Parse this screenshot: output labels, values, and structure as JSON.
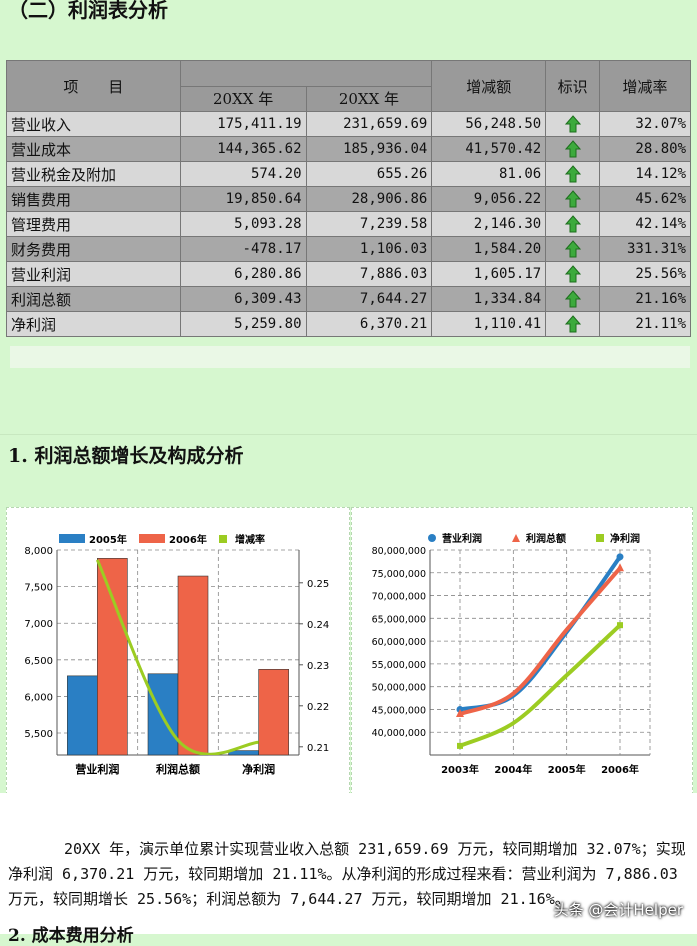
{
  "section_title": "（二）利润表分析",
  "table": {
    "header": {
      "item": "项　　目",
      "col1": "20XX 年",
      "col2": "20XX 年",
      "change": "增减额",
      "flag": "标识",
      "rate": "增减率"
    },
    "rows": [
      {
        "name": "营业收入",
        "v1": "175,411.19",
        "v2": "231,659.69",
        "change": "56,248.50",
        "rate": "32.07%",
        "flag": "up-arrow-icon"
      },
      {
        "name": "营业成本",
        "v1": "144,365.62",
        "v2": "185,936.04",
        "change": "41,570.42",
        "rate": "28.80%",
        "flag": "up-arrow-icon"
      },
      {
        "name": "营业税金及附加",
        "v1": "574.20",
        "v2": "655.26",
        "change": "81.06",
        "rate": "14.12%",
        "flag": "up-arrow-icon"
      },
      {
        "name": "销售费用",
        "v1": "19,850.64",
        "v2": "28,906.86",
        "change": "9,056.22",
        "rate": "45.62%",
        "flag": "up-arrow-icon"
      },
      {
        "name": "管理费用",
        "v1": "5,093.28",
        "v2": "7,239.58",
        "change": "2,146.30",
        "rate": "42.14%",
        "flag": "up-arrow-icon"
      },
      {
        "name": "财务费用",
        "v1": "-478.17",
        "v2": "1,106.03",
        "change": "1,584.20",
        "rate": "331.31%",
        "flag": "up-arrow-icon"
      },
      {
        "name": "营业利润",
        "v1": "6,280.86",
        "v2": "7,886.03",
        "change": "1,605.17",
        "rate": "25.56%",
        "flag": "up-arrow-icon"
      },
      {
        "name": "利润总额",
        "v1": "6,309.43",
        "v2": "7,644.27",
        "change": "1,334.84",
        "rate": "21.16%",
        "flag": "up-arrow-icon"
      },
      {
        "name": "净利润",
        "v1": "5,259.80",
        "v2": "6,370.21",
        "change": "1,110.41",
        "rate": "21.11%",
        "flag": "up-arrow-icon"
      }
    ]
  },
  "subsection_title": "1. 利润总额增长及构成分析",
  "chart_data": [
    {
      "type": "bar",
      "categories": [
        "营业利润",
        "利润总额",
        "净利润"
      ],
      "series": [
        {
          "name": "2005年",
          "values": [
            6280.86,
            6309.43,
            5259.8
          ],
          "color": "#2a7fc4"
        },
        {
          "name": "2006年",
          "values": [
            7886.03,
            7644.27,
            6370.21
          ],
          "color": "#ee6448"
        }
      ],
      "secondary_series": {
        "name": "增减率",
        "values": [
          0.2556,
          0.2116,
          0.2111
        ],
        "color": "#9ccc22"
      },
      "ylim": [
        5200,
        8000
      ],
      "yticks": [
        "8,000",
        "7,500",
        "7,000",
        "6,500",
        "6,000",
        "5,500"
      ],
      "y2lim": [
        0.208,
        0.258
      ],
      "y2ticks": [
        "0.25",
        "0.24",
        "0.23",
        "0.22",
        "0.21"
      ],
      "legend": "top",
      "grid": true
    },
    {
      "type": "line",
      "x": [
        "2003年",
        "2004年",
        "2005年",
        "2006年"
      ],
      "series": [
        {
          "name": "营业利润",
          "values": [
            45000000,
            48000000,
            62000000,
            78500000
          ],
          "color": "#2a7fc4",
          "marker": "circle"
        },
        {
          "name": "利润总额",
          "values": [
            44000000,
            48500000,
            62500000,
            76000000
          ],
          "color": "#ee6448",
          "marker": "triangle"
        },
        {
          "name": "净利润",
          "values": [
            37000000,
            42000000,
            52500000,
            63500000
          ],
          "color": "#9ccc22",
          "marker": "square"
        }
      ],
      "ylim": [
        35000000,
        80000000
      ],
      "yticks": [
        "80,000,000",
        "75,000,000",
        "70,000,000",
        "65,000,000",
        "60,000,000",
        "55,000,000",
        "50,000,000",
        "45,000,000",
        "40,000,000"
      ],
      "legend": "top",
      "grid": true
    }
  ],
  "paragraph": "20XX 年，演示单位累计实现营业收入总额 231,659.69 万元，较同期增加 32.07%；实现净利润 6,370.21 万元，较同期增加 21.11%。从净利润的形成过程来看：营业利润为 7,886.03 万元，较同期增长 25.56%；利润总额为 7,644.27 万元，较同期增加 21.16%。",
  "next_heading": "2. 成本费用分析",
  "watermark": "头条 @会计Helper"
}
